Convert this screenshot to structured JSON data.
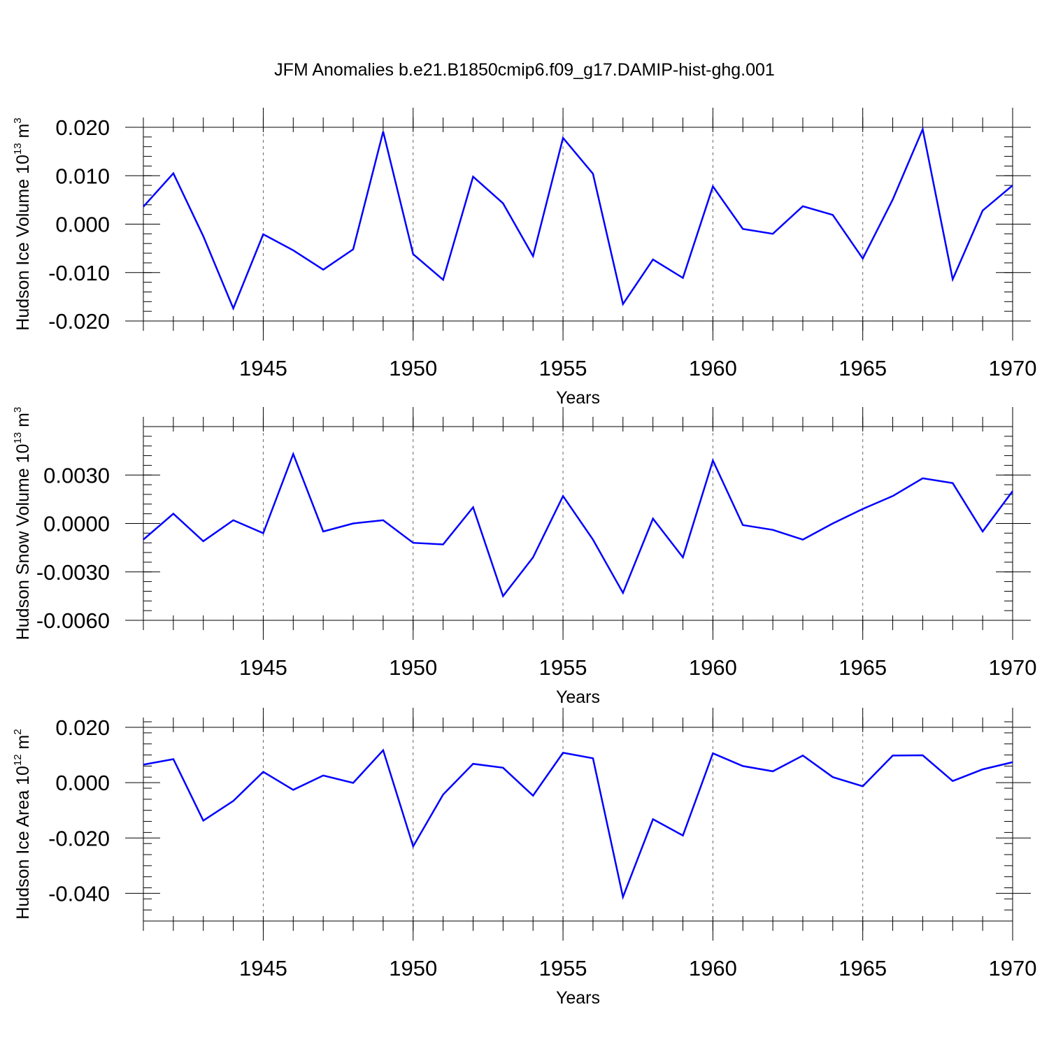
{
  "title": "JFM Anomalies b.e21.B1850cmip6.f09_g17.DAMIP-hist-ghg.001",
  "line_color": "#0000ff",
  "chart_data": [
    {
      "type": "line",
      "title": "JFM Anomalies b.e21.B1850cmip6.f09_g17.DAMIP-hist-ghg.001",
      "xlabel": "Years",
      "ylabel": "Hudson Ice Volume 10",
      "ylabel_exp": "13",
      "ylabel_unit": " m",
      "ylabel_unit_exp": "3",
      "xlim": [
        1941,
        1970
      ],
      "ylim": [
        -0.02,
        0.02
      ],
      "x_ticks": [
        1945,
        1950,
        1955,
        1960,
        1965,
        1970
      ],
      "y_ticks": [
        -0.02,
        -0.01,
        0.0,
        0.01,
        0.02
      ],
      "y_tick_labels": [
        "-0.020",
        "-0.010",
        "0.000",
        "0.010",
        "0.020"
      ],
      "y_minor_step": 0.002,
      "grid": "vertical dashed at major x ticks",
      "x": [
        1941,
        1942,
        1943,
        1944,
        1945,
        1946,
        1947,
        1948,
        1949,
        1950,
        1951,
        1952,
        1953,
        1954,
        1955,
        1956,
        1957,
        1958,
        1959,
        1960,
        1961,
        1962,
        1963,
        1964,
        1965,
        1966,
        1967,
        1968,
        1969,
        1970
      ],
      "series": [
        {
          "name": "Hudson Ice Volume",
          "values": [
            0.0036,
            0.0105,
            -0.0025,
            -0.0174,
            -0.0021,
            -0.0054,
            -0.0094,
            -0.0052,
            0.0191,
            -0.0062,
            -0.0115,
            0.0098,
            0.0043,
            -0.0066,
            0.0178,
            0.0104,
            -0.0165,
            -0.0073,
            -0.0111,
            0.0078,
            -0.001,
            -0.002,
            0.0037,
            0.0019,
            -0.0071,
            0.0051,
            0.0196,
            -0.0114,
            0.0028,
            0.008
          ]
        }
      ]
    },
    {
      "type": "line",
      "xlabel": "Years",
      "ylabel": "Hudson Snow Volume 10",
      "ylabel_exp": "13",
      "ylabel_unit": " m",
      "ylabel_unit_exp": "3",
      "xlim": [
        1941,
        1970
      ],
      "ylim": [
        -0.006,
        0.006
      ],
      "x_ticks": [
        1945,
        1950,
        1955,
        1960,
        1965,
        1970
      ],
      "y_ticks": [
        -0.006,
        -0.003,
        0.0,
        0.003
      ],
      "y_tick_labels": [
        "-0.0060",
        "-0.0030",
        "0.0000",
        "0.0030"
      ],
      "y_minor_step": 0.0006,
      "grid": "vertical dashed at major x ticks",
      "x": [
        1941,
        1942,
        1943,
        1944,
        1945,
        1946,
        1947,
        1948,
        1949,
        1950,
        1951,
        1952,
        1953,
        1954,
        1955,
        1956,
        1957,
        1958,
        1959,
        1960,
        1961,
        1962,
        1963,
        1964,
        1965,
        1966,
        1967,
        1968,
        1969,
        1970
      ],
      "series": [
        {
          "name": "Hudson Snow Volume",
          "values": [
            -0.001,
            0.0006,
            -0.0011,
            0.0002,
            -0.0006,
            0.0043,
            -0.0005,
            0.0,
            0.0002,
            -0.0012,
            -0.0013,
            0.001,
            -0.0045,
            -0.0021,
            0.0017,
            -0.001,
            -0.0043,
            0.0003,
            -0.0021,
            0.0039,
            -0.0001,
            -0.0004,
            -0.001,
            0.0,
            0.0009,
            0.0017,
            0.0028,
            0.0025,
            -0.0005,
            0.002
          ]
        }
      ]
    },
    {
      "type": "line",
      "xlabel": "Years",
      "ylabel": "Hudson Ice Area 10",
      "ylabel_exp": "12",
      "ylabel_unit": " m",
      "ylabel_unit_exp": "2",
      "xlim": [
        1941,
        1970
      ],
      "ylim": [
        -0.05,
        0.02
      ],
      "x_ticks": [
        1945,
        1950,
        1955,
        1960,
        1965,
        1970
      ],
      "y_ticks": [
        -0.04,
        -0.02,
        0.0,
        0.02
      ],
      "y_tick_labels": [
        "-0.040",
        "-0.020",
        "0.000",
        "0.020"
      ],
      "y_minor_step": 0.004,
      "grid": "vertical dashed at major x ticks",
      "x": [
        1941,
        1942,
        1943,
        1944,
        1945,
        1946,
        1947,
        1948,
        1949,
        1950,
        1951,
        1952,
        1953,
        1954,
        1955,
        1956,
        1957,
        1958,
        1959,
        1960,
        1961,
        1962,
        1963,
        1964,
        1965,
        1966,
        1967,
        1968,
        1969,
        1970
      ],
      "series": [
        {
          "name": "Hudson Ice Area",
          "values": [
            0.0065,
            0.0085,
            -0.0137,
            -0.0066,
            0.0039,
            -0.0026,
            0.0026,
            -0.0001,
            0.0117,
            -0.023,
            -0.0043,
            0.0068,
            0.0054,
            -0.0047,
            0.0108,
            0.0088,
            -0.0413,
            -0.0132,
            -0.0191,
            0.0106,
            0.006,
            0.0041,
            0.0098,
            0.002,
            -0.0013,
            0.0098,
            0.0099,
            0.0006,
            0.0048,
            0.0074
          ]
        }
      ]
    }
  ]
}
